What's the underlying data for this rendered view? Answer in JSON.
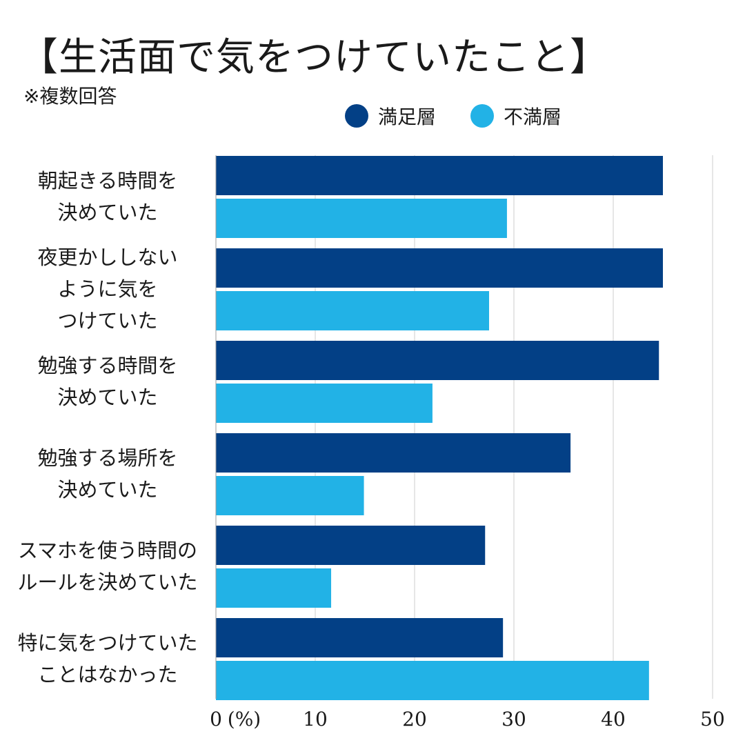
{
  "title": "【生活面で気をつけていたこと】",
  "subtitle": "※複数回答",
  "colors": {
    "satisfied": "#034086",
    "dissatisfied": "#22b2e6",
    "grid": "#cccccc"
  },
  "chart_data": {
    "type": "bar",
    "orientation": "horizontal",
    "categories": [
      [
        "朝起きる時間を",
        "決めていた"
      ],
      [
        "夜更かししない",
        "ように気を",
        "つけていた"
      ],
      [
        "勉強する時間を",
        "決めていた"
      ],
      [
        "勉強する場所を",
        "決めていた"
      ],
      [
        "スマホを使う時間の",
        "ルールを決めていた"
      ],
      [
        "特に気をつけていた",
        "ことはなかった"
      ]
    ],
    "series": [
      {
        "name": "満足層",
        "values": [
          45,
          45,
          44.6,
          35.7,
          27.1,
          28.9
        ]
      },
      {
        "name": "不満層",
        "values": [
          29.3,
          27.5,
          21.8,
          14.9,
          11.6,
          43.6
        ]
      }
    ],
    "xlim": [
      0,
      50
    ],
    "xticks": [
      0,
      10,
      20,
      30,
      40,
      50
    ],
    "unit_label": "(%)",
    "grid": true,
    "legend_position": "top-right"
  }
}
